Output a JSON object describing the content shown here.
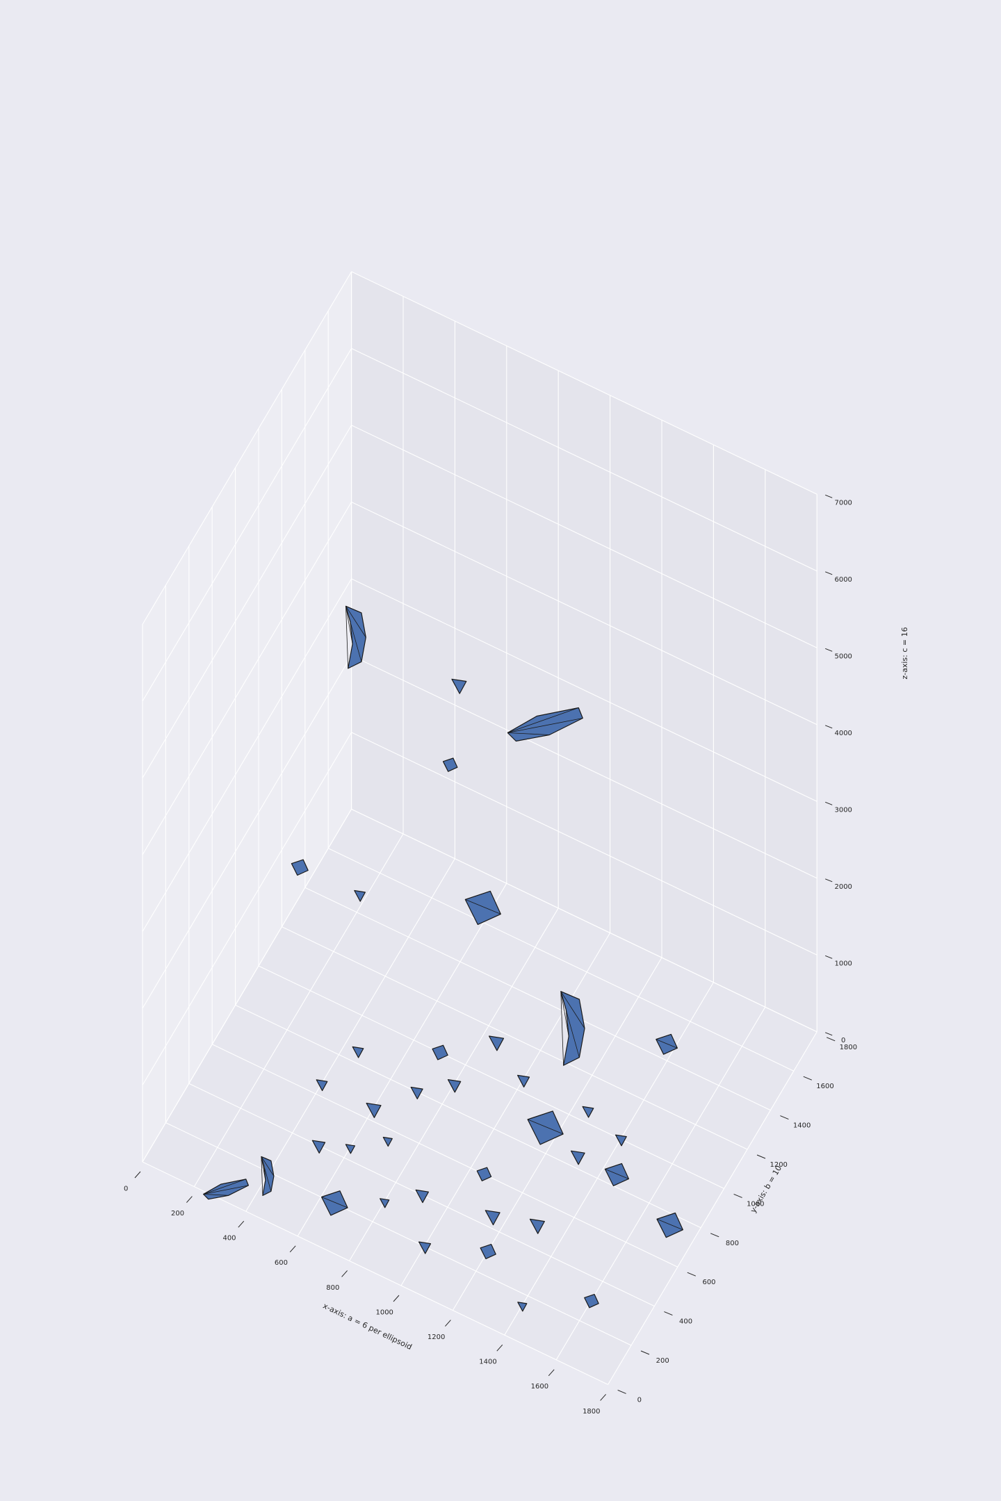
{
  "chart_data": {
    "type": "surface",
    "projection": "3d",
    "series_color": "#4c72b0",
    "edge_color": "#1a1a1a",
    "pane_color": "#e5e5ed",
    "grid": true,
    "xlabel": "x-axis: a = 6 per ellipsoid",
    "ylabel": "y-axis: b = 10",
    "zlabel": "z-axis: c = 16",
    "xlim": [
      0,
      1800
    ],
    "ylim": [
      0,
      1800
    ],
    "zlim": [
      0,
      7000
    ],
    "xticks": [
      "0",
      "200",
      "400",
      "600",
      "800",
      "1000",
      "1200",
      "1400",
      "1600",
      "1800"
    ],
    "yticks": [
      "0",
      "200",
      "400",
      "600",
      "800",
      "1000",
      "1200",
      "1400",
      "1600",
      "1800"
    ],
    "zticks": [
      "0",
      "1000",
      "2000",
      "3000",
      "4000",
      "5000",
      "6000",
      "7000"
    ],
    "blobs": [
      {
        "x": 80,
        "y": 1650,
        "z": 2750,
        "s": 3.2,
        "shape": "crescent"
      },
      {
        "x": 450,
        "y": 1720,
        "z": 2550,
        "s": 1.6,
        "shape": "tri"
      },
      {
        "x": 830,
        "y": 1620,
        "z": 2900,
        "s": 3.0,
        "shape": "long"
      },
      {
        "x": 560,
        "y": 1400,
        "z": 2500,
        "s": 1.2,
        "shape": "quad"
      },
      {
        "x": 180,
        "y": 950,
        "z": 1700,
        "s": 1.4,
        "shape": "quad"
      },
      {
        "x": 720,
        "y": 1320,
        "z": 1100,
        "s": 3.0,
        "shape": "quad"
      },
      {
        "x": 1120,
        "y": 1200,
        "z": 480,
        "s": 3.8,
        "shape": "crescent"
      },
      {
        "x": 1450,
        "y": 1280,
        "z": 600,
        "s": 1.8,
        "shape": "quad"
      },
      {
        "x": 300,
        "y": 1200,
        "z": 900,
        "s": 1.2,
        "shape": "tri"
      },
      {
        "x": 1150,
        "y": 900,
        "z": 0,
        "s": 3.0,
        "shape": "quad"
      },
      {
        "x": 800,
        "y": 900,
        "z": 0,
        "s": 1.4,
        "shape": "tri"
      },
      {
        "x": 700,
        "y": 800,
        "z": 0,
        "s": 1.3,
        "shape": "tri"
      },
      {
        "x": 600,
        "y": 650,
        "z": 0,
        "s": 1.6,
        "shape": "tri"
      },
      {
        "x": 1450,
        "y": 850,
        "z": 0,
        "s": 2.0,
        "shape": "quad"
      },
      {
        "x": 1700,
        "y": 750,
        "z": 0,
        "s": 2.2,
        "shape": "quad"
      },
      {
        "x": 500,
        "y": 400,
        "z": 0,
        "s": 1.4,
        "shape": "tri"
      },
      {
        "x": 400,
        "y": 180,
        "z": 0,
        "s": 2.0,
        "shape": "crescent"
      },
      {
        "x": 650,
        "y": 200,
        "z": 0,
        "s": 2.2,
        "shape": "quad"
      },
      {
        "x": 900,
        "y": 400,
        "z": 0,
        "s": 1.4,
        "shape": "tri"
      },
      {
        "x": 1050,
        "y": 600,
        "z": 0,
        "s": 1.2,
        "shape": "quad"
      },
      {
        "x": 1150,
        "y": 450,
        "z": 0,
        "s": 1.6,
        "shape": "tri"
      },
      {
        "x": 1300,
        "y": 500,
        "z": 0,
        "s": 1.6,
        "shape": "tri"
      },
      {
        "x": 1200,
        "y": 300,
        "z": 0,
        "s": 1.3,
        "shape": "quad"
      },
      {
        "x": 1000,
        "y": 200,
        "z": 0,
        "s": 1.3,
        "shape": "tri"
      },
      {
        "x": 300,
        "y": 50,
        "z": 0,
        "s": 1.8,
        "shape": "long"
      },
      {
        "x": 600,
        "y": 450,
        "z": 0,
        "s": 1.0,
        "shape": "tri"
      },
      {
        "x": 700,
        "y": 550,
        "z": 0,
        "s": 1.0,
        "shape": "tri"
      },
      {
        "x": 1600,
        "y": 300,
        "z": 0,
        "s": 1.2,
        "shape": "quad"
      },
      {
        "x": 850,
        "y": 1150,
        "z": 0,
        "s": 1.6,
        "shape": "tri"
      },
      {
        "x": 1000,
        "y": 1050,
        "z": 0,
        "s": 1.3,
        "shape": "tri"
      },
      {
        "x": 1250,
        "y": 1050,
        "z": 0,
        "s": 1.2,
        "shape": "tri"
      },
      {
        "x": 1400,
        "y": 1000,
        "z": 0,
        "s": 1.2,
        "shape": "tri"
      },
      {
        "x": 1300,
        "y": 850,
        "z": 0,
        "s": 1.5,
        "shape": "tri"
      },
      {
        "x": 700,
        "y": 1000,
        "z": 0,
        "s": 1.3,
        "shape": "quad"
      },
      {
        "x": 450,
        "y": 850,
        "z": 0,
        "s": 1.2,
        "shape": "tri"
      },
      {
        "x": 400,
        "y": 650,
        "z": 0,
        "s": 1.2,
        "shape": "tri"
      },
      {
        "x": 800,
        "y": 300,
        "z": 0,
        "s": 1.0,
        "shape": "tri"
      },
      {
        "x": 1400,
        "y": 150,
        "z": 0,
        "s": 1.0,
        "shape": "tri"
      }
    ]
  }
}
